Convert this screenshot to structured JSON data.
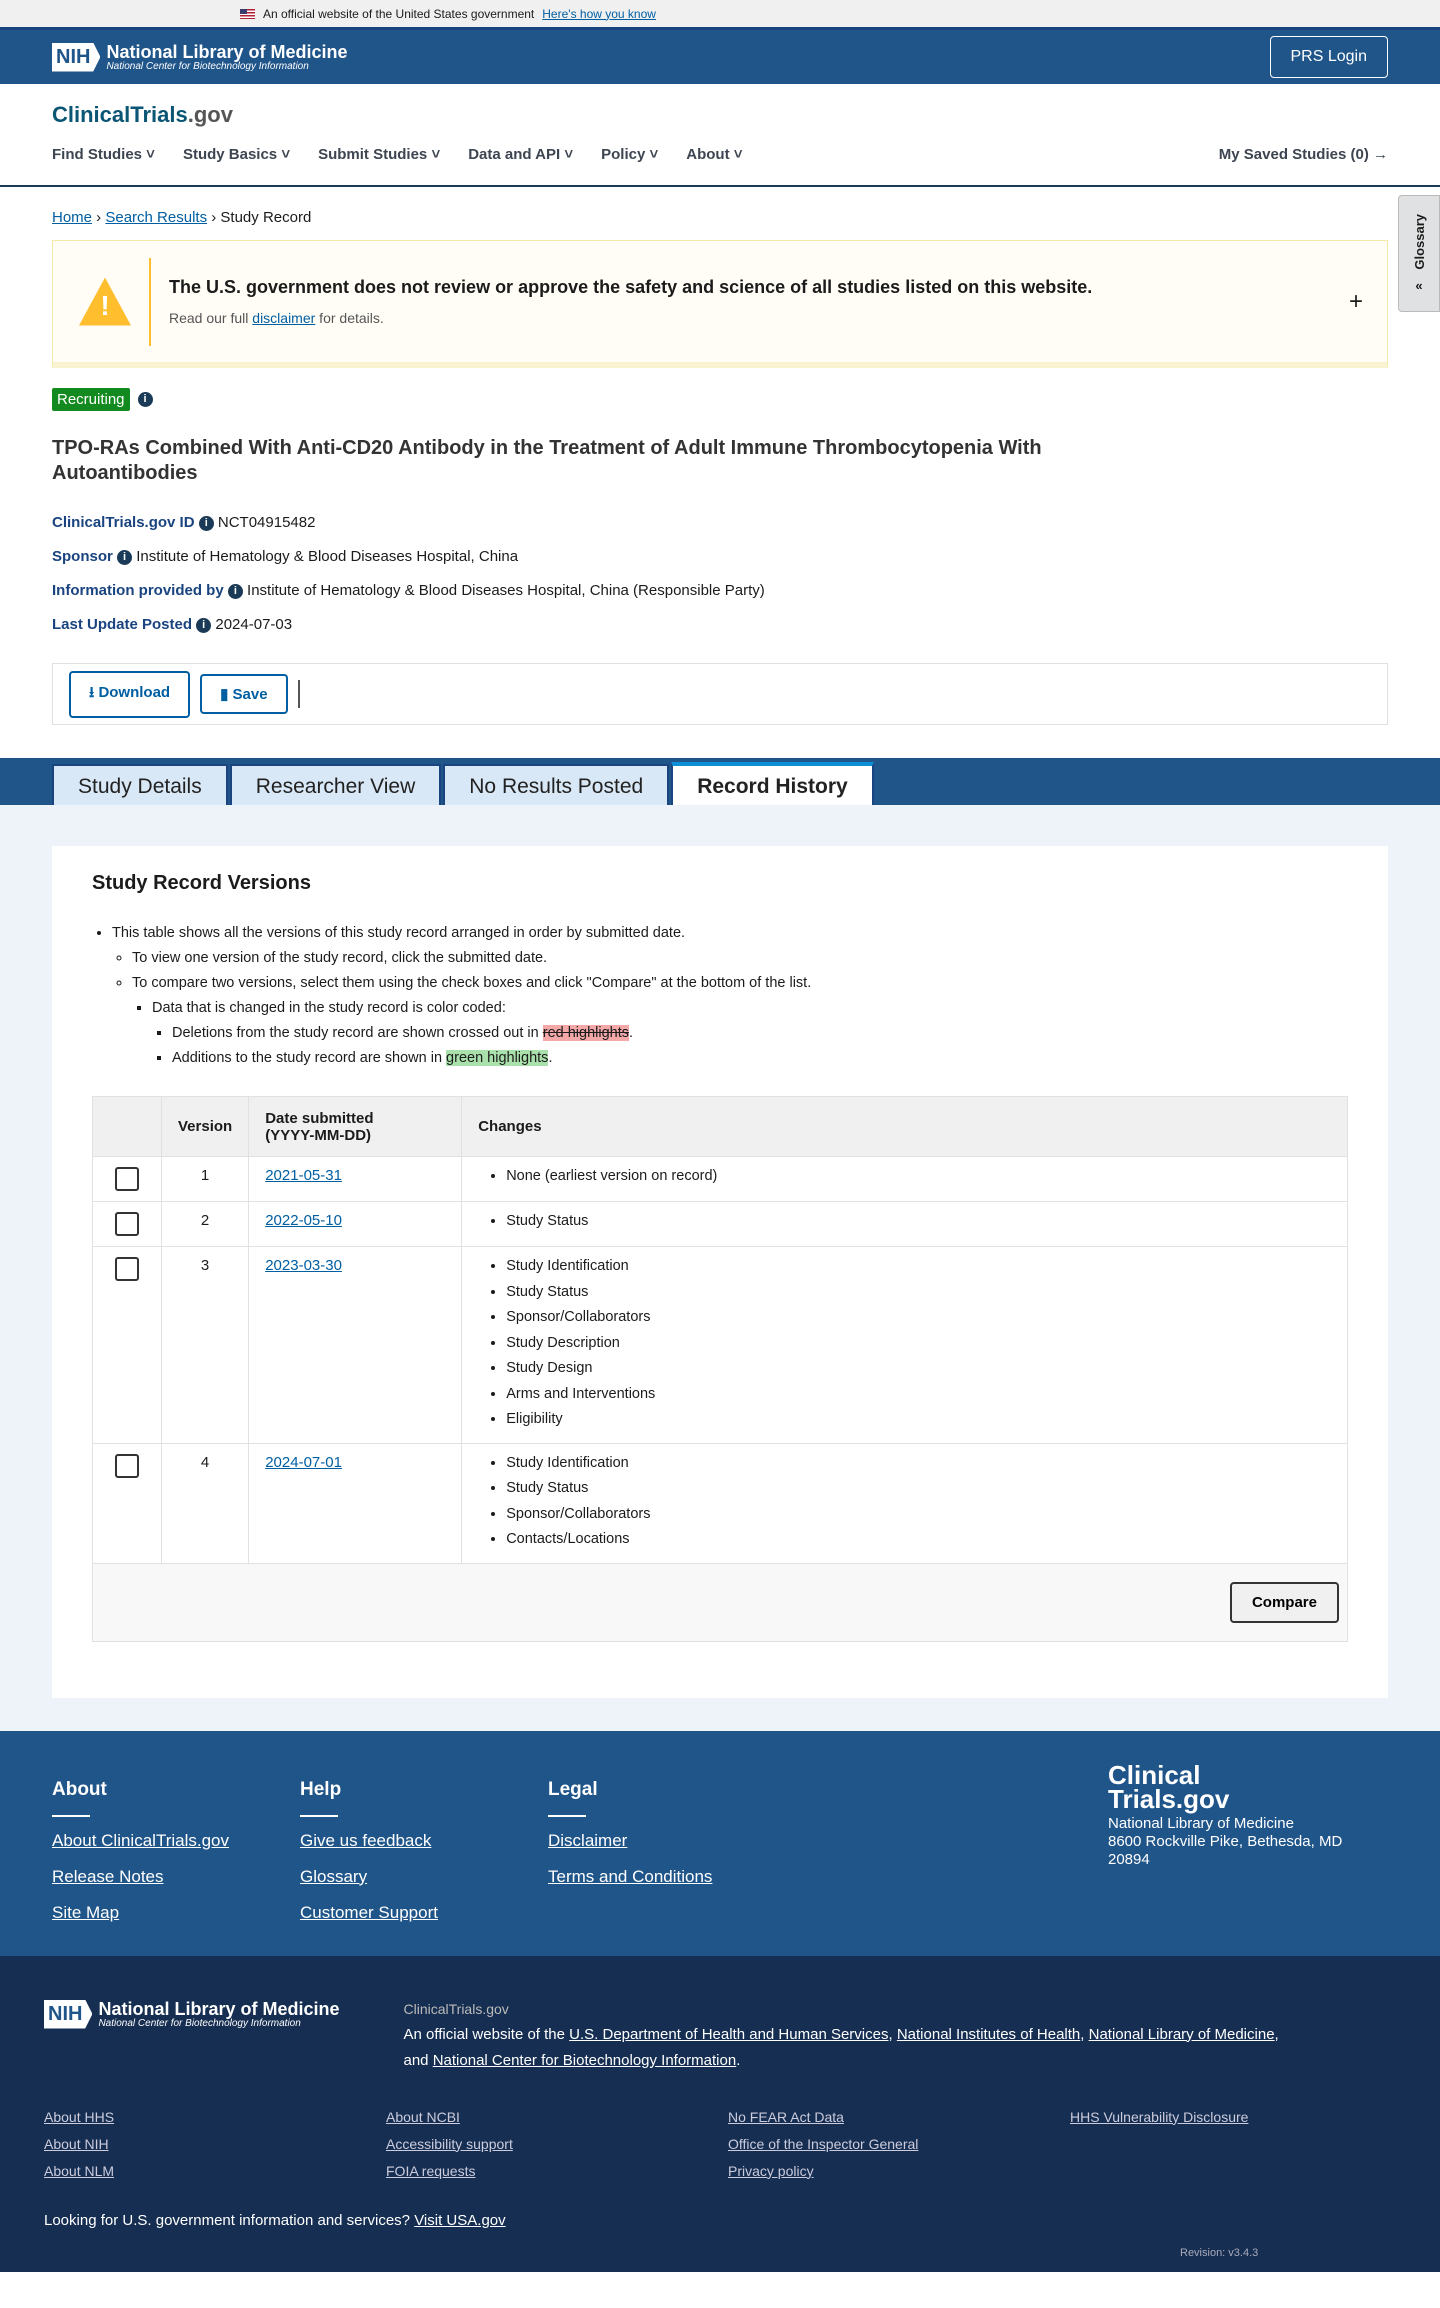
{
  "gov_banner": {
    "text": "An official website of the United States government",
    "link": "Here's how you know"
  },
  "header": {
    "logo_title": "National Library of Medicine",
    "logo_sub": "National Center for Biotechnology Information",
    "logo_abbr": "NIH",
    "prs_login": "PRS Login"
  },
  "nav": {
    "brand_a": "ClinicalTrials",
    "brand_b": ".gov",
    "items": [
      "Find Studies",
      "Study Basics",
      "Submit Studies",
      "Data and API",
      "Policy",
      "About"
    ],
    "saved": "My Saved Studies (0)"
  },
  "breadcrumb": {
    "home": "Home",
    "search": "Search Results",
    "current": "Study Record"
  },
  "glossary": "Glossary",
  "alert": {
    "title": "The U.S. government does not review or approve the safety and science of all studies listed on this website.",
    "pre": "Read our full ",
    "link": "disclaimer",
    "post": " for details."
  },
  "study": {
    "status": "Recruiting",
    "title": "TPO-RAs Combined With Anti-CD20 Antibody in the Treatment of Adult Immune Thrombocytopenia With Autoantibodies",
    "id_label": "ClinicalTrials.gov ID",
    "id": "NCT04915482",
    "sponsor_label": "Sponsor",
    "sponsor": "Institute of Hematology & Blood Diseases Hospital, China",
    "info_label": "Information provided by",
    "info": "Institute of Hematology & Blood Diseases Hospital, China (Responsible Party)",
    "updated_label": "Last Update Posted",
    "updated": "2024-07-03"
  },
  "actions": {
    "download": "Download",
    "save": "Save"
  },
  "tabs": [
    "Study Details",
    "Researcher View",
    "No Results Posted",
    "Record History"
  ],
  "versions": {
    "title": "Study Record Versions",
    "notes": [
      "This table shows all the versions of this study record arranged in order by submitted date.",
      "To view one version of the study record, click the submitted date.",
      "To compare two versions, select them using the check boxes and click \"Compare\" at the bottom of the list.",
      "Data that is changed in the study record is color coded:",
      "Deletions from the study record are shown crossed out in ",
      "red highlights",
      "Additions to the study record are shown in ",
      "green highlights",
      "."
    ],
    "headers": [
      "Version",
      "Date submitted",
      "(YYYY-MM-DD)",
      "Changes"
    ],
    "rows": [
      {
        "version": "1",
        "date": "2021-05-31",
        "changes": [
          "None (earliest version on record)"
        ]
      },
      {
        "version": "2",
        "date": "2022-05-10",
        "changes": [
          "Study Status"
        ]
      },
      {
        "version": "3",
        "date": "2023-03-30",
        "changes": [
          "Study Identification",
          "Study Status",
          "Sponsor/Collaborators",
          "Study Description",
          "Study Design",
          "Arms and Interventions",
          "Eligibility"
        ]
      },
      {
        "version": "4",
        "date": "2024-07-01",
        "changes": [
          "Study Identification",
          "Study Status",
          "Sponsor/Collaborators",
          "Contacts/Locations"
        ]
      }
    ],
    "compare": "Compare"
  },
  "footer": {
    "cols": [
      {
        "title": "About",
        "links": [
          "About ClinicalTrials.gov",
          "Release Notes",
          "Site Map"
        ]
      },
      {
        "title": "Help",
        "links": [
          "Give us feedback",
          "Glossary",
          "Customer Support"
        ]
      },
      {
        "title": "Legal",
        "links": [
          "Disclaimer",
          "Terms and Conditions"
        ]
      }
    ],
    "logo_a": "Clinical",
    "logo_b": "Trials.gov",
    "addr1": "National Library of Medicine",
    "addr2": "8600 Rockville Pike, Bethesda, MD",
    "addr3": "20894"
  },
  "footer2": {
    "site": "ClinicalTrials.gov",
    "pre": "An official website of the ",
    "l1": "U.S. Department of Health and Human Services",
    "l2": "National Institutes of Health",
    "l3": "National Library of Medicine",
    "and": "and ",
    "l4": "National Center for Biotechnology Information",
    "links": [
      "About HHS",
      "About NCBI",
      "No FEAR Act Data",
      "HHS Vulnerability Disclosure",
      "About NIH",
      "Accessibility support",
      "Office of the Inspector General",
      "",
      "About NLM",
      "FOIA requests",
      "Privacy policy",
      ""
    ],
    "usa_text": "Looking for U.S. government information and services?",
    "usa_link": "Visit USA.gov",
    "revision": "Revision: v3.4.3"
  }
}
